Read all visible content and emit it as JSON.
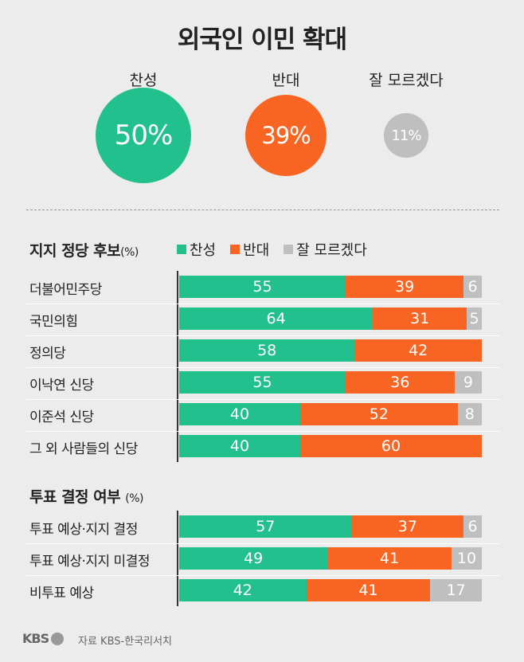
{
  "chart_data": {
    "type": "bar",
    "title": "외국인 이민 확대",
    "overall": [
      {
        "name": "찬성",
        "value": 50,
        "label": "50%"
      },
      {
        "name": "반대",
        "value": 39,
        "label": "39%"
      },
      {
        "name": "잘 모르겠다",
        "value": 11,
        "label": "11%"
      }
    ],
    "legend": [
      "찬성",
      "반대",
      "잘 모르겠다"
    ],
    "colors": {
      "찬성": "#22c08c",
      "반대": "#f86523",
      "잘 모르겠다": "#bfbfbf"
    },
    "groups": [
      {
        "title": "지지 정당 후보",
        "unit": "(%)",
        "categories": [
          "더불어민주당",
          "국민의힘",
          "정의당",
          "이낙연 신당",
          "이준석 신당",
          "그 외 사람들의 신당"
        ],
        "series": [
          {
            "name": "찬성",
            "values": [
              55,
              64,
              58,
              55,
              40,
              40
            ]
          },
          {
            "name": "반대",
            "values": [
              39,
              31,
              42,
              36,
              52,
              60
            ]
          },
          {
            "name": "잘 모르겠다",
            "values": [
              6,
              5,
              0,
              9,
              8,
              0
            ]
          }
        ]
      },
      {
        "title": "투표 결정 여부",
        "unit": "(%)",
        "categories": [
          "투표 예상·지지 결정",
          "투표 예상·지지 미결정",
          "비투표 예상"
        ],
        "series": [
          {
            "name": "찬성",
            "values": [
              57,
              49,
              42
            ]
          },
          {
            "name": "반대",
            "values": [
              37,
              41,
              41
            ]
          },
          {
            "name": "잘 모르겠다",
            "values": [
              6,
              10,
              17
            ]
          }
        ]
      }
    ]
  },
  "footer": {
    "logo": "KBS",
    "source": "자료 KBS-한국리서치"
  }
}
